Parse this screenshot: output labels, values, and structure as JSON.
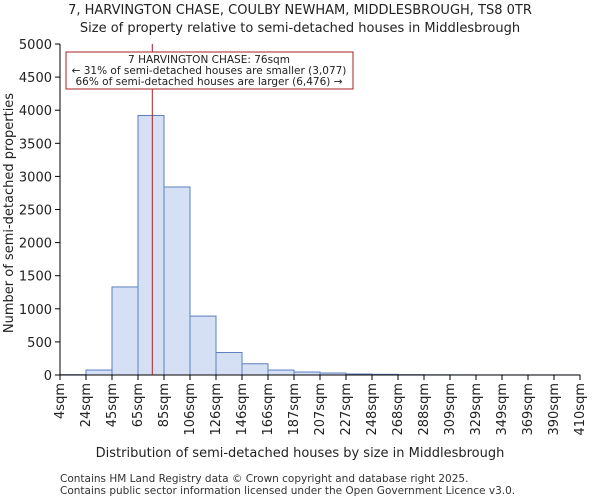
{
  "chart_data": {
    "type": "histogram-bar",
    "title_line1": "7, HARVINGTON CHASE, COULBY NEWHAM, MIDDLESBROUGH, TS8 0TR",
    "title_line2": "Size of property relative to semi-detached houses in Middlesbrough",
    "xlabel": "Distribution of semi-detached houses by size in Middlesbrough",
    "ylabel": "Number of semi-detached properties",
    "ylim": [
      0,
      5000
    ],
    "yticks": [
      0,
      500,
      1000,
      1500,
      2000,
      2500,
      3000,
      3500,
      4000,
      4500,
      5000
    ],
    "categories": [
      "4sqm",
      "24sqm",
      "45sqm",
      "65sqm",
      "85sqm",
      "106sqm",
      "126sqm",
      "146sqm",
      "166sqm",
      "187sqm",
      "207sqm",
      "227sqm",
      "248sqm",
      "268sqm",
      "288sqm",
      "309sqm",
      "329sqm",
      "349sqm",
      "369sqm",
      "390sqm",
      "410sqm"
    ],
    "values": [
      5,
      75,
      1330,
      3920,
      2840,
      890,
      340,
      170,
      75,
      45,
      30,
      15,
      10,
      5,
      3,
      2,
      1,
      1,
      1,
      1
    ],
    "bar_color": "#d6e0f5",
    "bar_edge_color": "#5b7fbf",
    "marker_value_index": 3.55,
    "marker_color": "#aa2222",
    "annotation": {
      "line1": "7 HARVINGTON CHASE: 76sqm",
      "line2": "← 31% of semi-detached houses are smaller (3,077)",
      "line3": "66% of semi-detached houses are larger (6,476) →"
    }
  },
  "footer": {
    "line1": "Contains HM Land Registry data © Crown copyright and database right 2025.",
    "line2": "Contains public sector information licensed under the Open Government Licence v3.0."
  }
}
